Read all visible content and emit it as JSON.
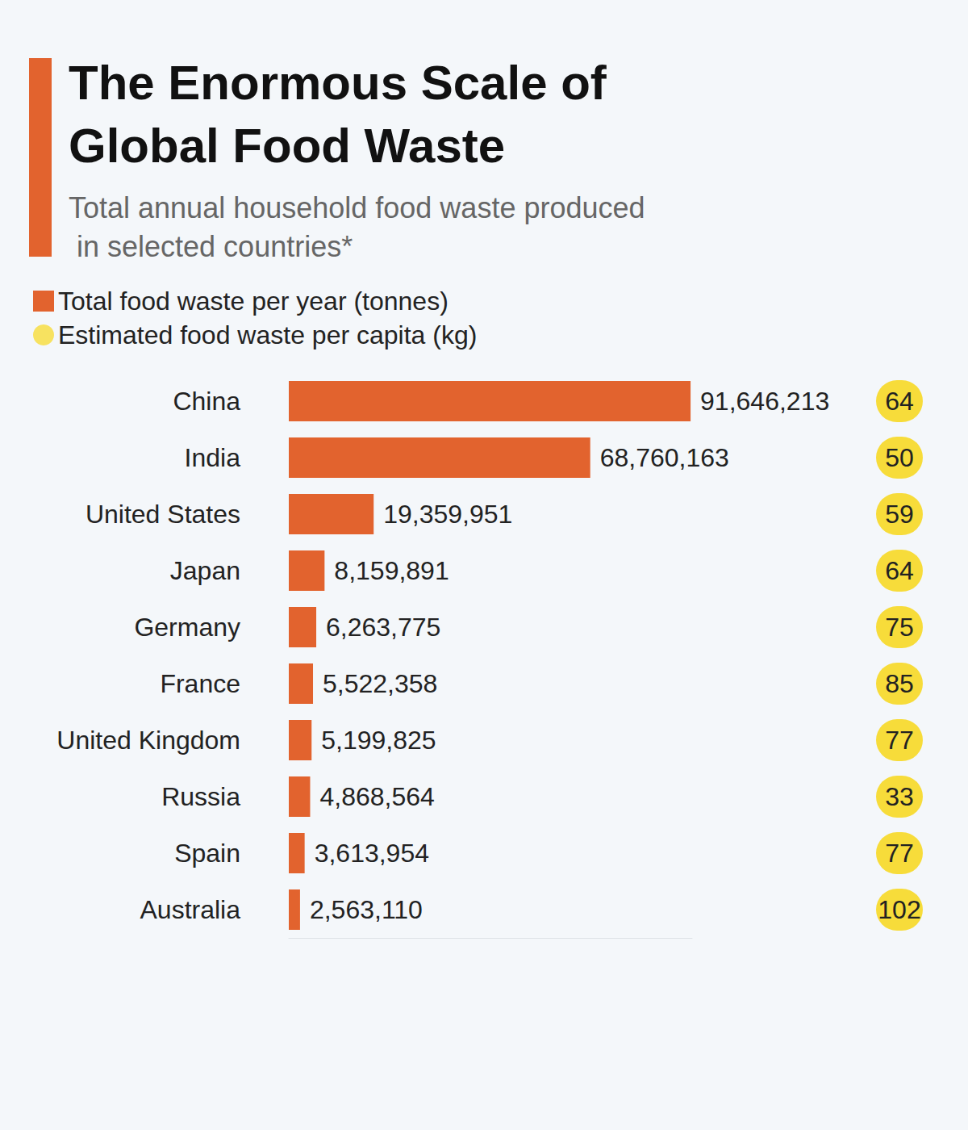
{
  "chart_data": {
    "type": "bar",
    "orientation": "horizontal",
    "title": "The Enormous Scale of Global Food Waste",
    "subtitle": "Total annual household food waste produced in selected countries*",
    "categories": [
      "China",
      "India",
      "United States",
      "Japan",
      "Germany",
      "France",
      "United Kingdom",
      "Russia",
      "Spain",
      "Australia"
    ],
    "series": [
      {
        "name": "Total food waste per year (tonnes)",
        "color": "#e2632e",
        "values": [
          91646213,
          68760163,
          19359951,
          8159891,
          6263775,
          5522358,
          5199825,
          4868564,
          3613954,
          2563110
        ],
        "value_labels": [
          "91,646,213",
          "68,760,163",
          "19,359,951",
          "8,159,891",
          "6,263,775",
          "5,522,358",
          "5,199,825",
          "4,868,564",
          "3,613,954",
          "2,563,110"
        ]
      },
      {
        "name": "Estimated food waste per capita (kg)",
        "color": "#f7dc3a",
        "marker": "circle",
        "values": [
          64,
          50,
          59,
          64,
          75,
          85,
          77,
          33,
          77,
          102
        ]
      }
    ],
    "xlim": [
      0,
      92000000
    ],
    "data_labels": true,
    "tick_labels": "y",
    "grid": false,
    "legend": "top-left"
  }
}
